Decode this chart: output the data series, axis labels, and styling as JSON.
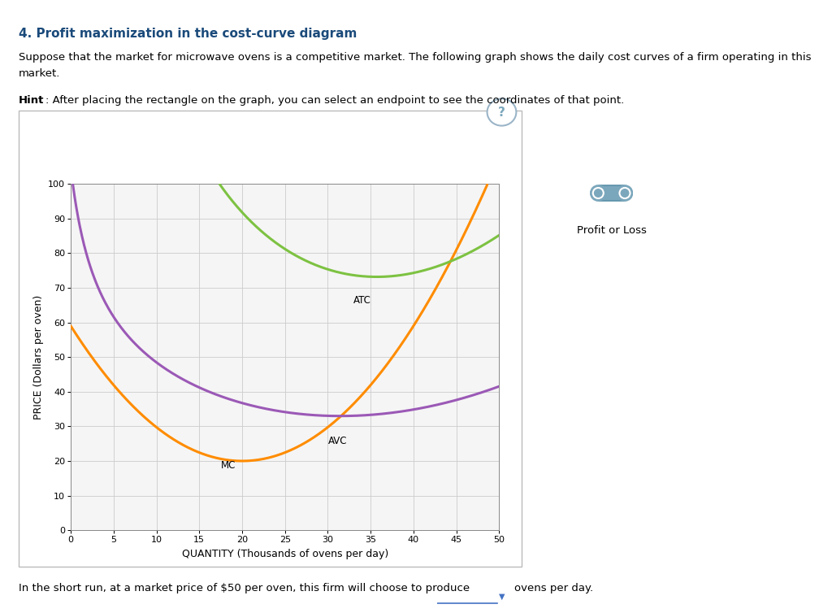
{
  "title": "4. Profit maximization in the cost-curve diagram",
  "subtitle1": "Suppose that the market for microwave ovens is a competitive market. The following graph shows the daily cost curves of a firm operating in this",
  "subtitle2": "market.",
  "hint_bold": "Hint",
  "hint_rest": ": After placing the rectangle on the graph, you can select an endpoint to see the coordinates of that point.",
  "xlabel": "QUANTITY (Thousands of ovens per day)",
  "ylabel": "PRICE (Dollars per oven)",
  "xlim": [
    0,
    50
  ],
  "ylim": [
    0,
    100
  ],
  "xticks": [
    0,
    5,
    10,
    15,
    20,
    25,
    30,
    35,
    40,
    45,
    50
  ],
  "yticks": [
    0,
    10,
    20,
    30,
    40,
    50,
    60,
    70,
    80,
    90,
    100
  ],
  "mc_color": "#FF8C00",
  "atc_color": "#7DC242",
  "avc_color": "#9B59B6",
  "bg_color": "#FFFFFF",
  "plot_bg_color": "#F5F5F5",
  "grid_color": "#CCCCCC",
  "footer": "In the short run, at a market price of $50 per oven, this firm will choose to produce",
  "footer2": "ovens per day.",
  "legend_label": "Profit or Loss",
  "legend_icon_color": "#7BA7BC",
  "title_color": "#1a4a7a",
  "panel_border_color": "#BBBBBB",
  "question_circle_color": "#9BB5C8",
  "question_text_color": "#7BA7BC"
}
